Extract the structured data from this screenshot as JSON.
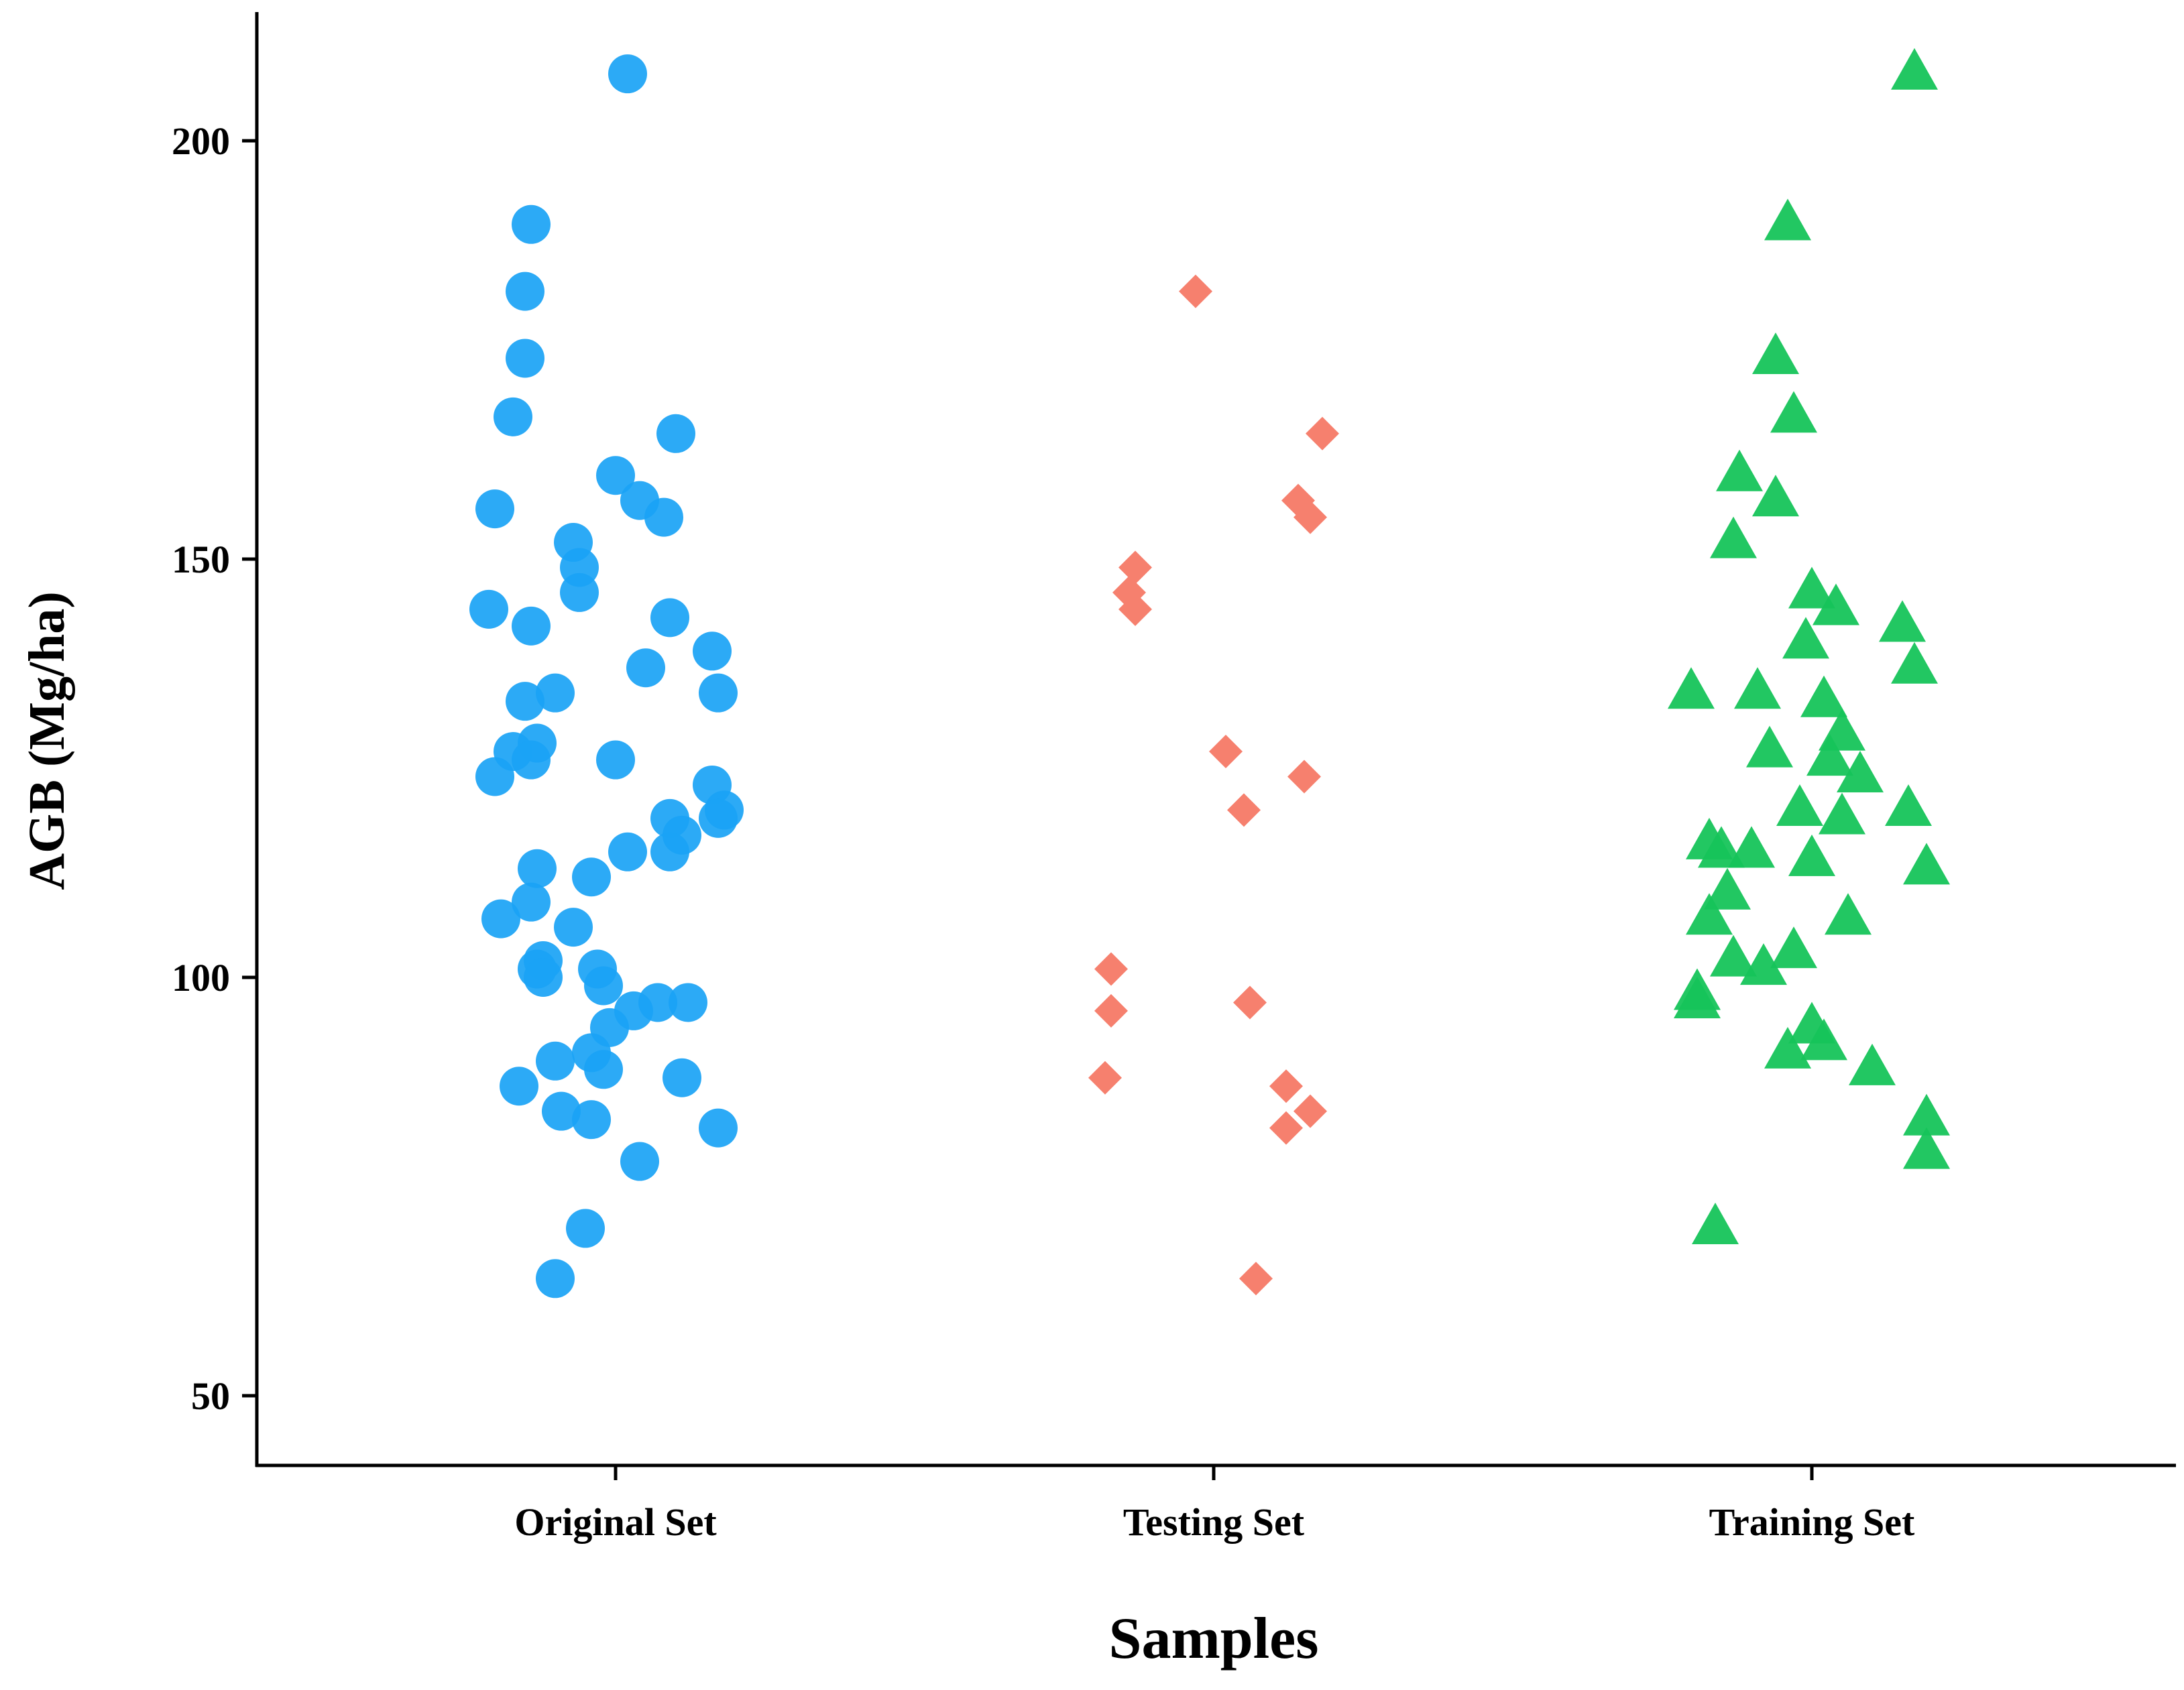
{
  "chart_data": {
    "type": "scatter",
    "title": "",
    "xlabel": "Samples",
    "ylabel": "AGB (Mg/ha)",
    "ylim": [
      43,
      215
    ],
    "yticks": [
      50,
      100,
      150,
      200
    ],
    "categories": [
      "Original Set",
      "Testing Set",
      "Training Set"
    ],
    "series": [
      {
        "name": "Original Set",
        "marker": "circle",
        "color": "#1aa3f5",
        "points": [
          {
            "jitter": 0.02,
            "y": 208
          },
          {
            "jitter": -0.14,
            "y": 190
          },
          {
            "jitter": -0.15,
            "y": 182
          },
          {
            "jitter": -0.15,
            "y": 174
          },
          {
            "jitter": -0.17,
            "y": 167
          },
          {
            "jitter": 0.1,
            "y": 165
          },
          {
            "jitter": -0.2,
            "y": 156
          },
          {
            "jitter": 0.0,
            "y": 160
          },
          {
            "jitter": 0.04,
            "y": 157
          },
          {
            "jitter": 0.08,
            "y": 155
          },
          {
            "jitter": -0.07,
            "y": 152
          },
          {
            "jitter": -0.06,
            "y": 149
          },
          {
            "jitter": -0.06,
            "y": 146
          },
          {
            "jitter": -0.21,
            "y": 144
          },
          {
            "jitter": -0.14,
            "y": 142
          },
          {
            "jitter": 0.09,
            "y": 143
          },
          {
            "jitter": 0.16,
            "y": 139
          },
          {
            "jitter": 0.05,
            "y": 137
          },
          {
            "jitter": -0.1,
            "y": 134
          },
          {
            "jitter": -0.15,
            "y": 133
          },
          {
            "jitter": 0.17,
            "y": 134
          },
          {
            "jitter": -0.13,
            "y": 128
          },
          {
            "jitter": -0.17,
            "y": 127
          },
          {
            "jitter": -0.14,
            "y": 126
          },
          {
            "jitter": 0.0,
            "y": 126
          },
          {
            "jitter": -0.2,
            "y": 124
          },
          {
            "jitter": 0.16,
            "y": 123
          },
          {
            "jitter": 0.18,
            "y": 120
          },
          {
            "jitter": 0.09,
            "y": 119
          },
          {
            "jitter": 0.17,
            "y": 119
          },
          {
            "jitter": 0.11,
            "y": 117
          },
          {
            "jitter": 0.02,
            "y": 115
          },
          {
            "jitter": 0.09,
            "y": 115
          },
          {
            "jitter": -0.13,
            "y": 113
          },
          {
            "jitter": -0.04,
            "y": 112
          },
          {
            "jitter": -0.14,
            "y": 109
          },
          {
            "jitter": -0.19,
            "y": 107
          },
          {
            "jitter": -0.07,
            "y": 106
          },
          {
            "jitter": -0.12,
            "y": 102
          },
          {
            "jitter": -0.13,
            "y": 101
          },
          {
            "jitter": -0.03,
            "y": 101
          },
          {
            "jitter": -0.12,
            "y": 100
          },
          {
            "jitter": -0.02,
            "y": 99
          },
          {
            "jitter": 0.07,
            "y": 97
          },
          {
            "jitter": 0.12,
            "y": 97
          },
          {
            "jitter": 0.03,
            "y": 96
          },
          {
            "jitter": -0.01,
            "y": 94
          },
          {
            "jitter": -0.04,
            "y": 91
          },
          {
            "jitter": -0.1,
            "y": 90
          },
          {
            "jitter": -0.02,
            "y": 89
          },
          {
            "jitter": -0.16,
            "y": 87
          },
          {
            "jitter": 0.11,
            "y": 88
          },
          {
            "jitter": -0.09,
            "y": 84
          },
          {
            "jitter": -0.04,
            "y": 83
          },
          {
            "jitter": 0.17,
            "y": 82
          },
          {
            "jitter": 0.04,
            "y": 78
          },
          {
            "jitter": -0.05,
            "y": 70
          },
          {
            "jitter": -0.1,
            "y": 64
          }
        ]
      },
      {
        "name": "Testing Set",
        "marker": "diamond",
        "color": "#f6806e",
        "points": [
          {
            "jitter": -0.03,
            "y": 182
          },
          {
            "jitter": 0.18,
            "y": 165
          },
          {
            "jitter": 0.14,
            "y": 157
          },
          {
            "jitter": 0.16,
            "y": 155
          },
          {
            "jitter": -0.13,
            "y": 149
          },
          {
            "jitter": -0.14,
            "y": 146
          },
          {
            "jitter": -0.13,
            "y": 144
          },
          {
            "jitter": 0.02,
            "y": 127
          },
          {
            "jitter": 0.15,
            "y": 124
          },
          {
            "jitter": 0.05,
            "y": 120
          },
          {
            "jitter": -0.17,
            "y": 101
          },
          {
            "jitter": -0.17,
            "y": 96
          },
          {
            "jitter": 0.06,
            "y": 97
          },
          {
            "jitter": -0.18,
            "y": 88
          },
          {
            "jitter": 0.12,
            "y": 87
          },
          {
            "jitter": 0.16,
            "y": 84
          },
          {
            "jitter": 0.12,
            "y": 82
          },
          {
            "jitter": 0.07,
            "y": 64
          }
        ]
      },
      {
        "name": "Training Set",
        "marker": "triangle",
        "color": "#16c45a",
        "points": [
          {
            "jitter": 0.17,
            "y": 208
          },
          {
            "jitter": -0.04,
            "y": 190
          },
          {
            "jitter": -0.06,
            "y": 174
          },
          {
            "jitter": -0.03,
            "y": 167
          },
          {
            "jitter": -0.12,
            "y": 160
          },
          {
            "jitter": -0.06,
            "y": 157
          },
          {
            "jitter": -0.13,
            "y": 152
          },
          {
            "jitter": 0.0,
            "y": 146
          },
          {
            "jitter": 0.04,
            "y": 144
          },
          {
            "jitter": 0.15,
            "y": 142
          },
          {
            "jitter": -0.01,
            "y": 140
          },
          {
            "jitter": 0.17,
            "y": 137
          },
          {
            "jitter": -0.2,
            "y": 134
          },
          {
            "jitter": -0.09,
            "y": 134
          },
          {
            "jitter": 0.02,
            "y": 133
          },
          {
            "jitter": 0.05,
            "y": 129
          },
          {
            "jitter": -0.07,
            "y": 127
          },
          {
            "jitter": 0.03,
            "y": 126
          },
          {
            "jitter": 0.08,
            "y": 124
          },
          {
            "jitter": -0.02,
            "y": 120
          },
          {
            "jitter": 0.16,
            "y": 120
          },
          {
            "jitter": 0.05,
            "y": 119
          },
          {
            "jitter": -0.17,
            "y": 116
          },
          {
            "jitter": -0.15,
            "y": 115
          },
          {
            "jitter": -0.1,
            "y": 115
          },
          {
            "jitter": 0.0,
            "y": 114
          },
          {
            "jitter": 0.19,
            "y": 113
          },
          {
            "jitter": -0.14,
            "y": 110
          },
          {
            "jitter": -0.17,
            "y": 107
          },
          {
            "jitter": 0.06,
            "y": 107
          },
          {
            "jitter": -0.03,
            "y": 103
          },
          {
            "jitter": -0.13,
            "y": 102
          },
          {
            "jitter": -0.08,
            "y": 101
          },
          {
            "jitter": -0.19,
            "y": 98
          },
          {
            "jitter": -0.19,
            "y": 97
          },
          {
            "jitter": 0.0,
            "y": 94
          },
          {
            "jitter": 0.02,
            "y": 92
          },
          {
            "jitter": -0.04,
            "y": 91
          },
          {
            "jitter": 0.1,
            "y": 89
          },
          {
            "jitter": 0.19,
            "y": 83
          },
          {
            "jitter": 0.19,
            "y": 79
          },
          {
            "jitter": -0.16,
            "y": 70
          }
        ]
      }
    ]
  },
  "colors": {
    "axis": "#000000",
    "background": "#ffffff"
  }
}
